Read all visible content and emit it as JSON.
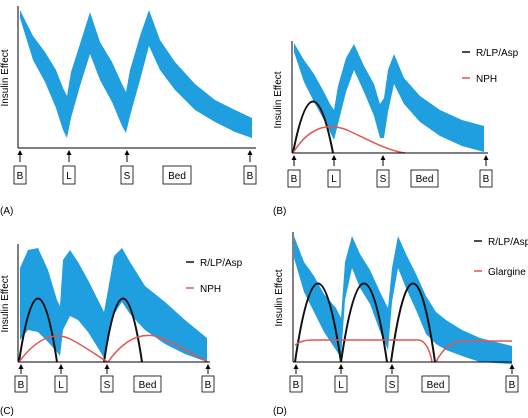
{
  "colors": {
    "band": "#1f9fe0",
    "rapid": "#111111",
    "basal": "#e05555",
    "axis": "#000000"
  },
  "panels": [
    {
      "id": "A",
      "label": "(A)",
      "ylabel": "Insulin Effect",
      "markers": [
        "B",
        "L",
        "S",
        "Bed",
        "B"
      ],
      "legend": []
    },
    {
      "id": "B",
      "label": "(B)",
      "ylabel": "Insulin Effect",
      "markers": [
        "B",
        "L",
        "S",
        "Bed",
        "B"
      ],
      "legend": [
        {
          "name": "R/LP/Asp",
          "color": "#111111"
        },
        {
          "name": "NPH",
          "color": "#e05555"
        }
      ]
    },
    {
      "id": "C",
      "label": "(C)",
      "ylabel": "Insulin Effect",
      "markers": [
        "B",
        "L",
        "S",
        "Bed",
        "B"
      ],
      "legend": [
        {
          "name": "R/LP/Asp",
          "color": "#111111"
        },
        {
          "name": "NPH",
          "color": "#e05555"
        }
      ]
    },
    {
      "id": "D",
      "label": "(D)",
      "ylabel": "Insulin Effect",
      "markers": [
        "B",
        "L",
        "S",
        "Bed",
        "B"
      ],
      "legend": [
        {
          "name": "R/LP/Asp",
          "color": "#111111"
        },
        {
          "name": "Glargine",
          "color": "#e05555"
        }
      ]
    }
  ]
}
